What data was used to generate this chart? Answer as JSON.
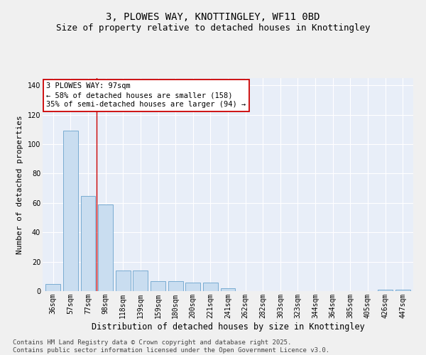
{
  "title_line1": "3, PLOWES WAY, KNOTTINGLEY, WF11 0BD",
  "title_line2": "Size of property relative to detached houses in Knottingley",
  "xlabel": "Distribution of detached houses by size in Knottingley",
  "ylabel": "Number of detached properties",
  "categories": [
    "36sqm",
    "57sqm",
    "77sqm",
    "98sqm",
    "118sqm",
    "139sqm",
    "159sqm",
    "180sqm",
    "200sqm",
    "221sqm",
    "241sqm",
    "262sqm",
    "282sqm",
    "303sqm",
    "323sqm",
    "344sqm",
    "364sqm",
    "385sqm",
    "405sqm",
    "426sqm",
    "447sqm"
  ],
  "values": [
    5,
    109,
    65,
    59,
    14,
    14,
    7,
    7,
    6,
    6,
    2,
    0,
    0,
    0,
    0,
    0,
    0,
    0,
    0,
    1,
    1
  ],
  "bar_color": "#c9ddf0",
  "bar_edge_color": "#6aa3cc",
  "background_color": "#e8eef8",
  "fig_background": "#f0f0f0",
  "ylim": [
    0,
    145
  ],
  "yticks": [
    0,
    20,
    40,
    60,
    80,
    100,
    120,
    140
  ],
  "annotation_text": "3 PLOWES WAY: 97sqm\n← 58% of detached houses are smaller (158)\n35% of semi-detached houses are larger (94) →",
  "annotation_box_color": "#ffffff",
  "annotation_box_edge_color": "#cc0000",
  "vline_color": "#cc0000",
  "footnote": "Contains HM Land Registry data © Crown copyright and database right 2025.\nContains public sector information licensed under the Open Government Licence v3.0.",
  "title_fontsize": 10,
  "subtitle_fontsize": 9,
  "tick_fontsize": 7,
  "annotation_fontsize": 7.5,
  "xlabel_fontsize": 8.5,
  "ylabel_fontsize": 8,
  "footnote_fontsize": 6.5
}
